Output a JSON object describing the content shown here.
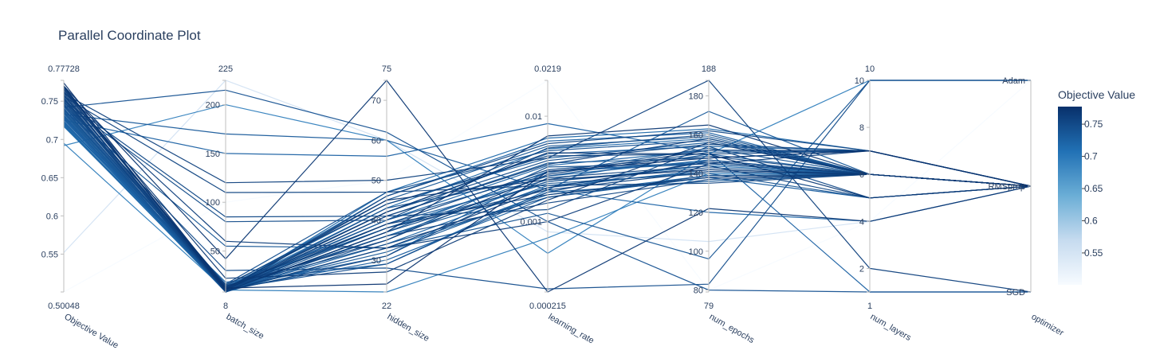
{
  "chart_data": {
    "type": "parallel_coordinates",
    "title": "Parallel Coordinate Plot",
    "colorscale": [
      "#f7fbff",
      "#c6dbef",
      "#6baed6",
      "#2171b5",
      "#08306b"
    ],
    "colorbar": {
      "title": "Objective Value",
      "range": [
        0.50048,
        0.77728
      ],
      "ticks": [
        "0.55",
        "0.6",
        "0.65",
        "0.7",
        "0.75"
      ],
      "tick_values": [
        0.55,
        0.6,
        0.65,
        0.7,
        0.75
      ]
    },
    "dimensions": [
      {
        "label": "Objective Value",
        "min_label": "0.50048",
        "max_label": "0.77728",
        "range": [
          0.50048,
          0.77728
        ],
        "scale": "linear",
        "ticks": [
          "0.55",
          "0.6",
          "0.65",
          "0.7",
          "0.75"
        ],
        "tick_values": [
          0.55,
          0.6,
          0.65,
          0.7,
          0.75
        ]
      },
      {
        "label": "batch_size",
        "min_label": "8",
        "max_label": "225",
        "range": [
          8,
          225
        ],
        "scale": "linear",
        "ticks": [
          "50",
          "100",
          "150",
          "200"
        ],
        "tick_values": [
          50,
          100,
          150,
          200
        ]
      },
      {
        "label": "hidden_size",
        "min_label": "22",
        "max_label": "75",
        "range": [
          22,
          75
        ],
        "scale": "linear",
        "ticks": [
          "30",
          "40",
          "50",
          "60",
          "70"
        ],
        "tick_values": [
          30,
          40,
          50,
          60,
          70
        ]
      },
      {
        "label": "learning_rate",
        "min_label": "0.000215",
        "max_label": "0.0219",
        "range": [
          0.000215,
          0.0219
        ],
        "scale": "log",
        "ticks": [
          "0.001",
          "0.01"
        ],
        "tick_values": [
          0.001,
          0.01
        ]
      },
      {
        "label": "num_epochs",
        "min_label": "79",
        "max_label": "188",
        "range": [
          79,
          188
        ],
        "scale": "linear",
        "ticks": [
          "80",
          "100",
          "120",
          "140",
          "160",
          "180"
        ],
        "tick_values": [
          80,
          100,
          120,
          140,
          160,
          180
        ]
      },
      {
        "label": "num_layers",
        "min_label": "1",
        "max_label": "10",
        "range": [
          1,
          10
        ],
        "scale": "linear",
        "ticks": [
          "2",
          "4",
          "6",
          "8",
          "10"
        ],
        "tick_values": [
          2,
          4,
          6,
          8,
          10
        ]
      },
      {
        "label": "optimizer",
        "min_label": "",
        "max_label": "",
        "range": [
          0,
          2
        ],
        "scale": "categorical",
        "ticks": [
          "SGD",
          "RMSprop",
          "Adam"
        ],
        "tick_values": [
          0,
          1,
          2
        ]
      }
    ],
    "columns": [
      "Objective Value",
      "batch_size",
      "hidden_size",
      "learning_rate",
      "num_epochs",
      "num_layers",
      "optimizer"
    ],
    "rows": [
      [
        0.50048,
        100,
        50,
        0.0219,
        80,
        4,
        2
      ],
      [
        0.552,
        225,
        60,
        0.0008,
        105,
        4,
        1
      ],
      [
        0.692,
        200,
        60,
        0.0005,
        150,
        10,
        2
      ],
      [
        0.695,
        10,
        22,
        0.0007,
        140,
        6,
        1
      ],
      [
        0.722,
        18,
        29,
        0.002,
        120,
        4,
        1
      ],
      [
        0.73,
        12,
        31,
        0.003,
        145,
        6,
        1
      ],
      [
        0.742,
        215,
        62,
        0.001,
        80,
        1,
        0
      ],
      [
        0.77,
        42,
        75,
        0.000215,
        122,
        4,
        1
      ],
      [
        0.746,
        30,
        28,
        0.00023,
        83,
        10,
        2
      ],
      [
        0.738,
        55,
        33,
        0.0012,
        96,
        10,
        2
      ],
      [
        0.733,
        170,
        60,
        0.002,
        172,
        6,
        1
      ],
      [
        0.725,
        150,
        56,
        0.0085,
        151,
        1,
        0
      ],
      [
        0.76,
        120,
        50,
        0.004,
        188,
        2,
        0
      ],
      [
        0.756,
        110,
        47,
        0.0022,
        135,
        6,
        1
      ],
      [
        0.751,
        85,
        41,
        0.0013,
        154,
        5,
        1
      ],
      [
        0.748,
        80,
        40,
        0.005,
        160,
        6,
        1
      ],
      [
        0.762,
        60,
        33,
        0.001,
        145,
        7,
        1
      ],
      [
        0.766,
        22,
        27,
        0.0016,
        156,
        6,
        1
      ],
      [
        0.774,
        12,
        24,
        0.003,
        148,
        7,
        1
      ],
      [
        0.77,
        9,
        37,
        0.0065,
        165,
        6,
        1
      ],
      [
        0.768,
        10,
        42,
        0.0045,
        150,
        5,
        1
      ],
      [
        0.769,
        11,
        45,
        0.0025,
        142,
        6,
        1
      ],
      [
        0.765,
        13,
        39,
        0.0018,
        138,
        6,
        1
      ],
      [
        0.763,
        14,
        35,
        0.0028,
        152,
        7,
        1
      ],
      [
        0.761,
        9,
        33,
        0.0021,
        146,
        6,
        1
      ],
      [
        0.759,
        10,
        41,
        0.0035,
        158,
        6,
        1
      ],
      [
        0.758,
        12,
        38,
        0.002,
        141,
        6,
        1
      ],
      [
        0.757,
        15,
        44,
        0.0042,
        150,
        7,
        1
      ],
      [
        0.755,
        11,
        36,
        0.0015,
        137,
        6,
        1
      ],
      [
        0.754,
        9,
        31,
        0.0026,
        144,
        5,
        1
      ],
      [
        0.753,
        8,
        46,
        0.0055,
        162,
        7,
        1
      ],
      [
        0.752,
        10,
        39,
        0.0031,
        149,
        6,
        1
      ],
      [
        0.75,
        13,
        34,
        0.0017,
        139,
        6,
        1
      ],
      [
        0.749,
        12,
        42,
        0.0038,
        155,
        7,
        1
      ],
      [
        0.747,
        9,
        37,
        0.0024,
        143,
        6,
        1
      ],
      [
        0.745,
        11,
        29,
        0.0019,
        147,
        6,
        1
      ],
      [
        0.744,
        16,
        47,
        0.0047,
        157,
        6,
        1
      ],
      [
        0.743,
        10,
        43,
        0.0027,
        151,
        7,
        1
      ],
      [
        0.741,
        8,
        35,
        0.0033,
        145,
        6,
        1
      ],
      [
        0.74,
        12,
        40,
        0.0029,
        153,
        6,
        1
      ],
      [
        0.739,
        9,
        38,
        0.0023,
        140,
        5,
        1
      ],
      [
        0.737,
        14,
        45,
        0.0052,
        159,
        6,
        1
      ],
      [
        0.736,
        10,
        32,
        0.0019,
        136,
        6,
        1
      ],
      [
        0.735,
        11,
        41,
        0.0036,
        148,
        7,
        1
      ],
      [
        0.734,
        8,
        36,
        0.0021,
        142,
        6,
        1
      ],
      [
        0.732,
        13,
        44,
        0.004,
        156,
        6,
        1
      ],
      [
        0.731,
        9,
        39,
        0.0025,
        150,
        6,
        1
      ],
      [
        0.729,
        10,
        30,
        0.0017,
        138,
        5,
        1
      ],
      [
        0.728,
        12,
        42,
        0.0044,
        154,
        7,
        1
      ],
      [
        0.727,
        8,
        37,
        0.003,
        146,
        6,
        1
      ],
      [
        0.726,
        11,
        46,
        0.0058,
        161,
        6,
        1
      ],
      [
        0.724,
        9,
        34,
        0.0022,
        141,
        6,
        1
      ],
      [
        0.723,
        10,
        40,
        0.0034,
        152,
        7,
        1
      ],
      [
        0.721,
        14,
        38,
        0.0027,
        147,
        6,
        1
      ],
      [
        0.72,
        8,
        33,
        0.0018,
        139,
        6,
        1
      ],
      [
        0.719,
        12,
        43,
        0.0049,
        158,
        6,
        1
      ],
      [
        0.718,
        9,
        47,
        0.0062,
        163,
        7,
        1
      ],
      [
        0.717,
        11,
        36,
        0.0024,
        144,
        6,
        1
      ]
    ]
  }
}
